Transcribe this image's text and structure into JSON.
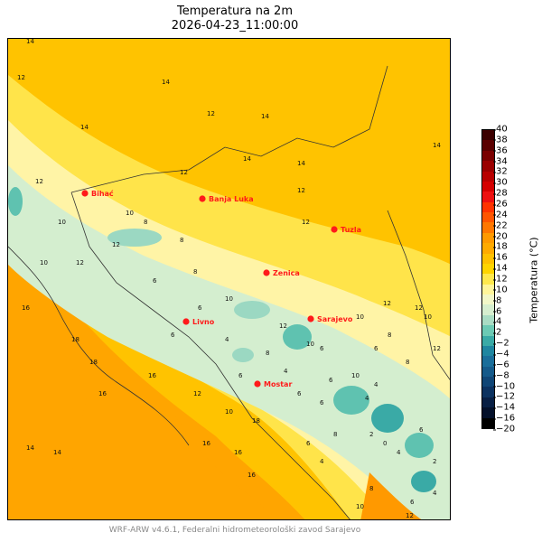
{
  "title": {
    "line1": "Temperatura na 2m",
    "line2": "2026-04-23_11:00:00"
  },
  "footer": "WRF-ARW v4.6.1, Federalni hidrometeorološki zavod Sarajevo",
  "colorbar": {
    "label": "Temperatura (°C)",
    "ticks": [
      "40",
      "38",
      "36",
      "34",
      "32",
      "30",
      "28",
      "26",
      "24",
      "22",
      "20",
      "18",
      "16",
      "14",
      "12",
      "10",
      "8",
      "6",
      "4",
      "2",
      "−2",
      "−4",
      "−6",
      "−8",
      "−10",
      "−12",
      "−14",
      "−16",
      "−20"
    ],
    "tick_values": [
      40,
      38,
      36,
      34,
      32,
      30,
      28,
      26,
      24,
      22,
      20,
      18,
      16,
      14,
      12,
      10,
      8,
      6,
      4,
      2,
      -2,
      -4,
      -6,
      -8,
      -10,
      -12,
      -14,
      -16,
      -20
    ],
    "range": [
      -20,
      40
    ],
    "colors_top_to_bottom": [
      "#3b0000",
      "#5a0000",
      "#7a0000",
      "#9a0000",
      "#b80000",
      "#d40000",
      "#ee1010",
      "#ff3300",
      "#ff5500",
      "#ff7700",
      "#ff9900",
      "#ffaa00",
      "#ffc000",
      "#ffd400",
      "#ffe84d",
      "#fff59a",
      "#f2f7c8",
      "#d6eecf",
      "#a9dcc4",
      "#6ccab4",
      "#3aaaa6",
      "#1f86a0",
      "#1a6e9a",
      "#155a8a",
      "#104676",
      "#0c3260",
      "#081f44",
      "#04102a",
      "#000000"
    ]
  },
  "cities": [
    {
      "name": "Bihać"
    },
    {
      "name": "Banja Luka"
    },
    {
      "name": "Tuzla"
    },
    {
      "name": "Zenica"
    },
    {
      "name": "Livno"
    },
    {
      "name": "Sarajevo"
    },
    {
      "name": "Mostar"
    }
  ],
  "contour_labels": [
    "14",
    "14",
    "12",
    "14",
    "14",
    "12",
    "14",
    "14",
    "12",
    "12",
    "14",
    "12",
    "10",
    "12",
    "12",
    "10",
    "8",
    "8",
    "10",
    "12",
    "8",
    "6",
    "6",
    "10",
    "6",
    "4",
    "10",
    "12",
    "6",
    "8",
    "6",
    "10",
    "6",
    "8",
    "8",
    "10",
    "16",
    "18",
    "18",
    "16",
    "16",
    "14",
    "16",
    "18",
    "16",
    "16",
    "14",
    "12",
    "10",
    "4",
    "6",
    "4",
    "2",
    "0",
    "4",
    "6",
    "2",
    "4",
    "2",
    "6",
    "8",
    "4",
    "8",
    "10",
    "12",
    "10",
    "6",
    "6",
    "4",
    "6",
    "12",
    "12",
    "12"
  ],
  "colors": {
    "warm_orange": "#ffc300",
    "dark_orange": "#ffa500",
    "yellow": "#ffe44a",
    "pale_yellow": "#fff4a6",
    "cream": "#f6f8c8",
    "mint": "#d4eecf",
    "teal_light": "#9bd8c2",
    "teal": "#5fc2b0",
    "city_marker": "#ff1a1a"
  }
}
